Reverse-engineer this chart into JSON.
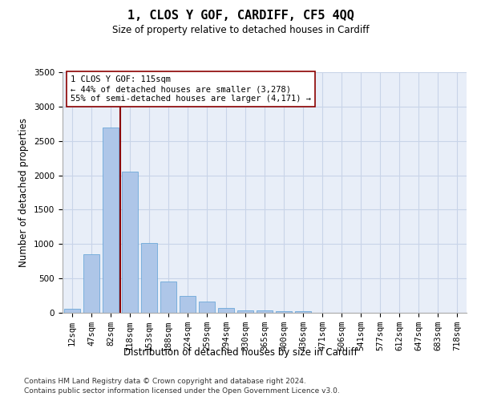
{
  "title": "1, CLOS Y GOF, CARDIFF, CF5 4QQ",
  "subtitle": "Size of property relative to detached houses in Cardiff",
  "xlabel": "Distribution of detached houses by size in Cardiff",
  "ylabel": "Number of detached properties",
  "categories": [
    "12sqm",
    "47sqm",
    "82sqm",
    "118sqm",
    "153sqm",
    "188sqm",
    "224sqm",
    "259sqm",
    "294sqm",
    "330sqm",
    "365sqm",
    "400sqm",
    "436sqm",
    "471sqm",
    "506sqm",
    "541sqm",
    "577sqm",
    "612sqm",
    "647sqm",
    "683sqm",
    "718sqm"
  ],
  "values": [
    60,
    850,
    2700,
    2050,
    1010,
    450,
    250,
    160,
    65,
    40,
    40,
    25,
    20,
    0,
    0,
    0,
    0,
    0,
    0,
    0,
    0
  ],
  "bar_color": "#aec6e8",
  "bar_edge_color": "#5a9fd4",
  "ylim": [
    0,
    3500
  ],
  "yticks": [
    0,
    500,
    1000,
    1500,
    2000,
    2500,
    3000,
    3500
  ],
  "vline_x": 2.5,
  "vline_color": "#8b0000",
  "annotation_line1": "1 CLOS Y GOF: 115sqm",
  "annotation_line2": "← 44% of detached houses are smaller (3,278)",
  "annotation_line3": "55% of semi-detached houses are larger (4,171) →",
  "annotation_box_facecolor": "#ffffff",
  "annotation_box_edgecolor": "#8b0000",
  "grid_color": "#c8d4e8",
  "bg_color": "#e8eef8",
  "footnote_line1": "Contains HM Land Registry data © Crown copyright and database right 2024.",
  "footnote_line2": "Contains public sector information licensed under the Open Government Licence v3.0.",
  "title_fontsize": 11,
  "subtitle_fontsize": 8.5,
  "ylabel_fontsize": 8.5,
  "xlabel_fontsize": 8.5,
  "tick_fontsize": 7.5,
  "annotation_fontsize": 7.5,
  "footnote_fontsize": 6.5
}
